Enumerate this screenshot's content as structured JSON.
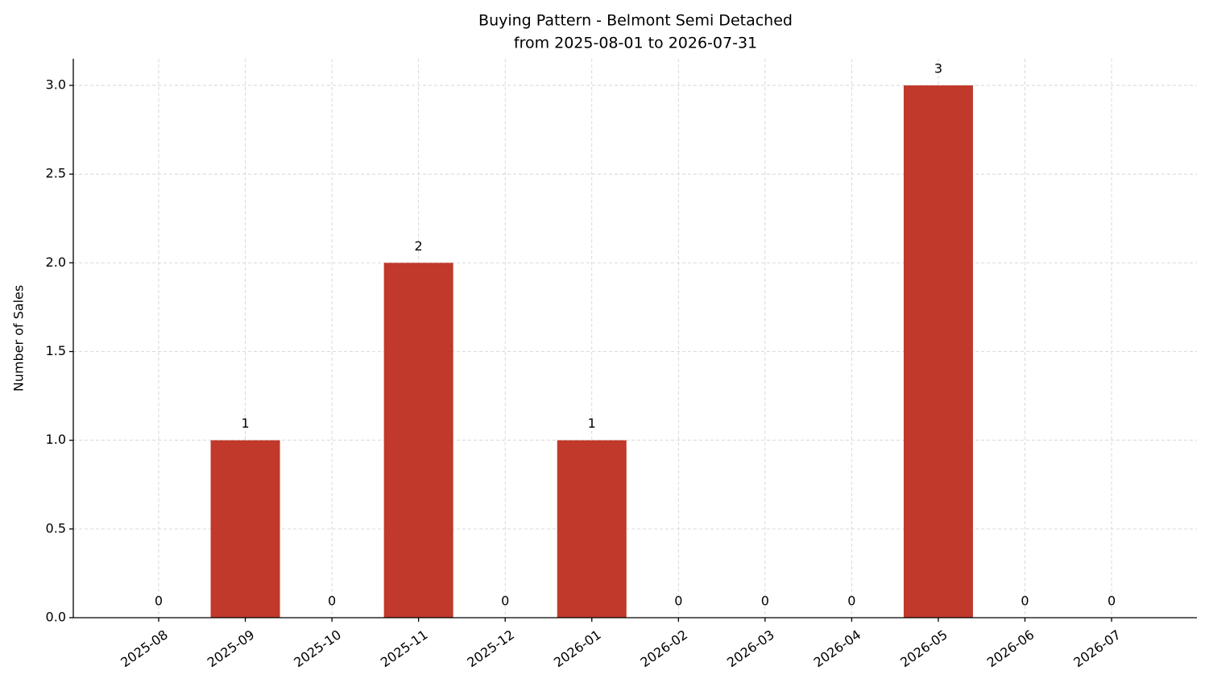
{
  "chart_data": {
    "type": "bar",
    "title": "Buying Pattern - Belmont Semi Detached",
    "subtitle": "from 2025-08-01 to 2026-07-31",
    "y_label": "Number of Sales",
    "categories": [
      "2025-08",
      "2025-09",
      "2025-10",
      "2025-11",
      "2025-12",
      "2026-01",
      "2026-02",
      "2026-03",
      "2026-04",
      "2026-05",
      "2026-06",
      "2026-07"
    ],
    "values": [
      0,
      1,
      0,
      2,
      0,
      1,
      0,
      0,
      0,
      3,
      0,
      0
    ],
    "color": "#c0392b",
    "ylim": [
      0,
      3.15
    ],
    "yticks": [
      {
        "value": 0,
        "label": "0.0"
      },
      0.5,
      {
        "value": 1,
        "label": "1.0"
      },
      1.5,
      {
        "value": 2,
        "label": "2.0"
      },
      2.5,
      {
        "value": 3,
        "label": "3.0"
      }
    ],
    "grid": true
  }
}
